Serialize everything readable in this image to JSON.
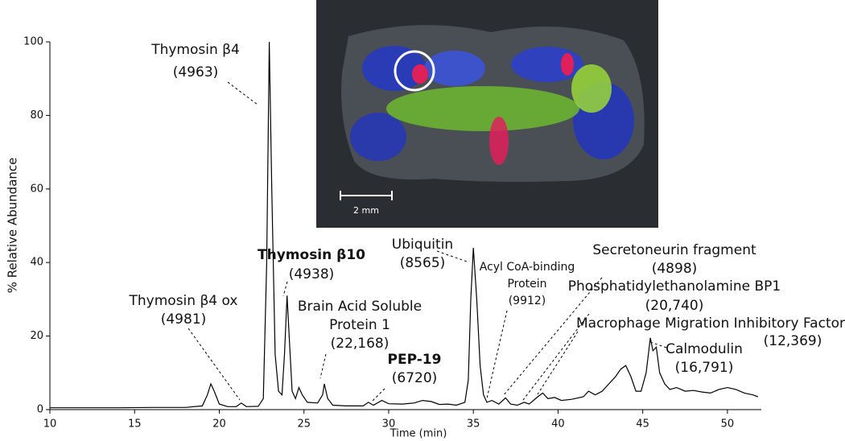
{
  "chart_data": {
    "type": "line",
    "xlabel": "Time (min)",
    "ylabel": "% Relative Abundance",
    "color": "#000000",
    "x": [
      10,
      12,
      14,
      16,
      18,
      19,
      19.3,
      19.5,
      19.7,
      20,
      20.5,
      21,
      21.3,
      21.6,
      22.3,
      22.6,
      22.8,
      22.95,
      23.1,
      23.3,
      23.5,
      23.7,
      23.85,
      24,
      24.15,
      24.3,
      24.5,
      24.7,
      24.9,
      25.2,
      25.8,
      26.1,
      26.2,
      26.4,
      26.7,
      27.5,
      28.5,
      28.8,
      29.1,
      29.6,
      30,
      30.8,
      31.5,
      32,
      32.5,
      33,
      33.5,
      34,
      34.5,
      34.7,
      34.85,
      35,
      35.2,
      35.4,
      35.6,
      35.8,
      36.1,
      36.5,
      36.9,
      37.2,
      37.6,
      38,
      38.3,
      38.8,
      39.1,
      39.4,
      39.8,
      40.2,
      40.8,
      41.5,
      41.8,
      42.2,
      42.6,
      43,
      43.4,
      43.7,
      44,
      44.3,
      44.6,
      44.9,
      45.2,
      45.45,
      45.6,
      45.8,
      46,
      46.3,
      46.6,
      47,
      47.5,
      48,
      48.5,
      49,
      49.5,
      50,
      50.5,
      51,
      51.5,
      51.8
    ],
    "values": [
      0.5,
      0.5,
      0.5,
      0.6,
      0.6,
      1,
      4,
      7,
      5,
      1.5,
      0.8,
      0.8,
      1.8,
      0.8,
      0.9,
      3,
      40,
      100,
      60,
      15,
      5,
      4,
      15,
      31,
      18,
      5,
      3,
      6,
      4,
      2,
      1.8,
      4,
      7,
      3,
      1.2,
      1,
      1,
      2,
      1.2,
      2.5,
      1.6,
      1.5,
      1.8,
      2.5,
      2.2,
      1.4,
      1.5,
      1.2,
      2,
      8,
      30,
      44,
      30,
      12,
      4,
      2,
      2.5,
      1.5,
      3.2,
      1.5,
      1.2,
      2,
      1.5,
      3.5,
      4.5,
      3,
      3.3,
      2.5,
      2.8,
      3.5,
      5,
      4,
      5,
      7,
      9,
      11,
      12,
      9,
      5,
      5,
      10,
      19.5,
      16,
      17,
      10,
      7,
      5.5,
      6,
      5,
      5.2,
      4.8,
      4.5,
      5.5,
      6,
      5.5,
      4.5,
      4,
      3.5
    ],
    "xlim": [
      10,
      52
    ],
    "ylim": [
      0,
      100
    ],
    "xticks": [
      10,
      15,
      20,
      25,
      30,
      35,
      40,
      45,
      50
    ],
    "yticks": [
      0,
      20,
      40,
      60,
      80,
      100
    ],
    "annotations": [
      [
        "Thymosin β4",
        "(4963)"
      ],
      [
        "Thymosin β4 ox",
        "(4981)"
      ],
      [
        "Thymosin β10",
        "(4938)"
      ],
      [
        "Brain Acid Soluble",
        "Protein 1",
        "(22,168)"
      ],
      [
        "PEP-19",
        "(6720)"
      ],
      [
        "Ubiquitin",
        "(8565)"
      ],
      [
        "Acyl CoA-binding",
        "Protein",
        "(9912)"
      ],
      [
        "Secretoneurin fragment",
        "(4898)"
      ],
      [
        "Phosphatidylethanolamine BP1",
        "(20,740)"
      ],
      [
        "Macrophage Migration Inhibitory Factor",
        "(12,369)"
      ],
      [
        "Calmodulin",
        "(16,791)"
      ]
    ]
  },
  "inset": {
    "scale_label": "2 mm"
  }
}
